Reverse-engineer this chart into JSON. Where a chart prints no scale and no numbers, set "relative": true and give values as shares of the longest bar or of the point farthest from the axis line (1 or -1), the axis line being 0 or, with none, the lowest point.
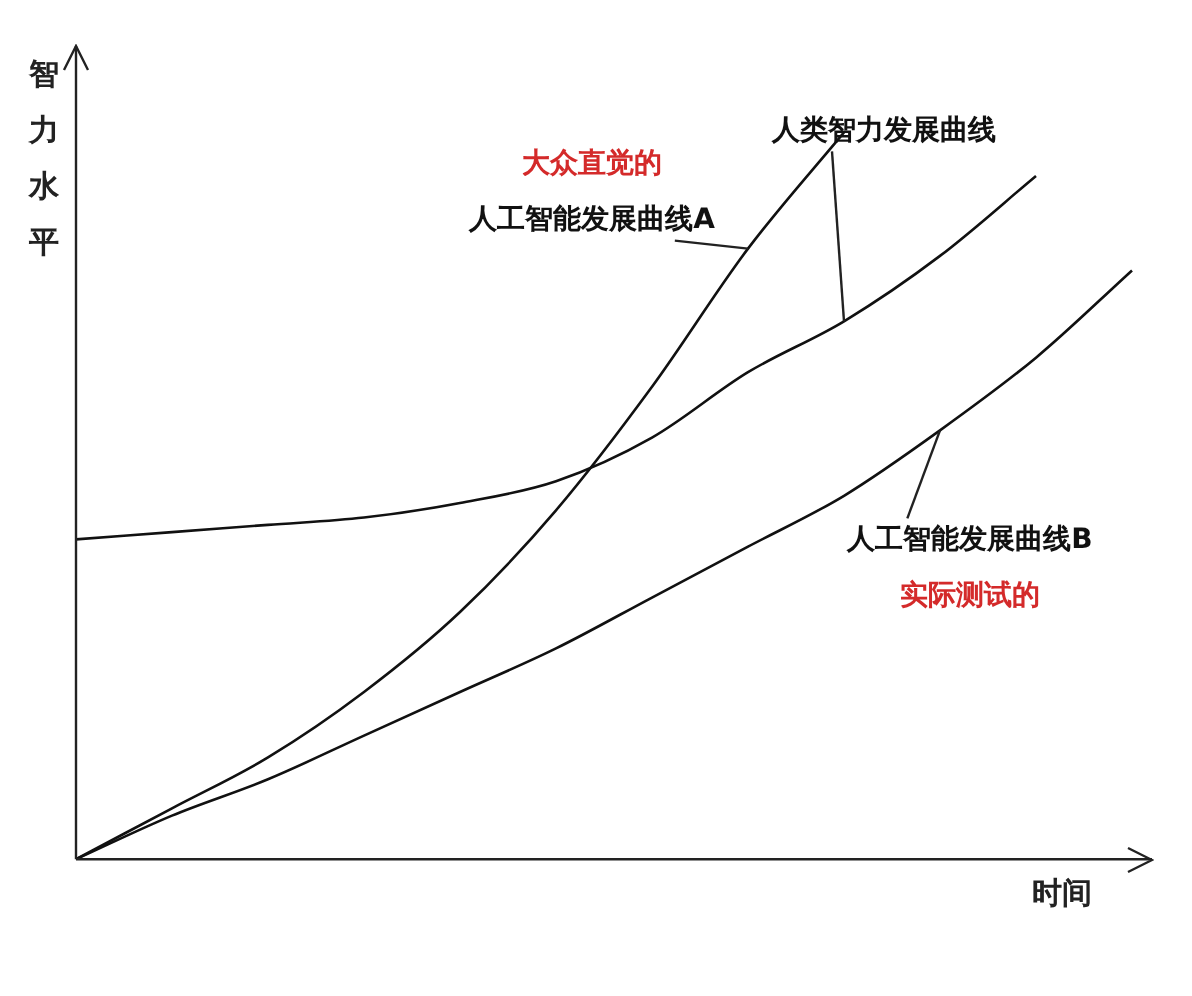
{
  "chart_data": {
    "type": "line",
    "relative": true,
    "xlabel": "时间",
    "ylabel": "智力水平",
    "categories": [
      null,
      null,
      null,
      null,
      null,
      null,
      null,
      null,
      null,
      null,
      null,
      null
    ],
    "series": [
      {
        "name": "人工智能发展曲线A",
        "color": "#111111",
        "values": [
          0,
          0.07,
          0.14,
          0.23,
          0.34,
          0.48,
          0.65,
          0.84,
          1,
          null,
          null,
          null
        ]
      },
      {
        "name": "人类智力发展曲线",
        "color": "#111111",
        "values": [
          0.44,
          0.45,
          0.46,
          0.47,
          0.49,
          0.52,
          0.58,
          0.67,
          0.74,
          0.83,
          0.94,
          null
        ]
      },
      {
        "name": "人工智能发展曲线B",
        "color": "#111111",
        "values": [
          0,
          0.06,
          0.11,
          0.17,
          0.23,
          0.29,
          0.36,
          0.43,
          0.5,
          0.59,
          0.69,
          0.81
        ]
      }
    ],
    "annotations": [
      "大众直觉的",
      "实际测试的"
    ],
    "grid": false,
    "legend": false,
    "marker": "none",
    "line_style": "solid"
  }
}
